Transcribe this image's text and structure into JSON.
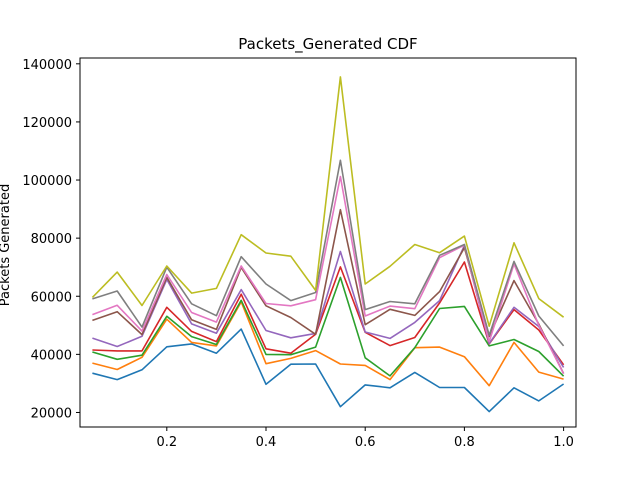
{
  "chart_data": {
    "type": "line",
    "title": "Packets_Generated CDF",
    "xlabel": "",
    "ylabel": "Packets Generated",
    "xlim": [
      0.025,
      1.025
    ],
    "ylim": [
      15000,
      142000
    ],
    "x_ticks": [
      "0.2",
      "0.4",
      "0.6",
      "0.8",
      "1.0"
    ],
    "x_tick_values": [
      0.2,
      0.4,
      0.6,
      0.8,
      1.0
    ],
    "y_ticks": [
      "20000",
      "40000",
      "60000",
      "80000",
      "100000",
      "120000",
      "140000"
    ],
    "y_tick_values": [
      20000,
      40000,
      60000,
      80000,
      100000,
      120000,
      140000
    ],
    "grid": false,
    "legend": "none",
    "x": [
      0.05,
      0.1,
      0.15,
      0.2,
      0.25,
      0.3,
      0.35,
      0.4,
      0.45,
      0.5,
      0.55,
      0.6,
      0.65,
      0.7,
      0.75,
      0.8,
      0.85,
      0.9,
      0.95,
      1.0
    ],
    "series": [
      {
        "color": "#1f77b4",
        "values": [
          33500,
          31300,
          34700,
          42600,
          43600,
          40400,
          48700,
          29700,
          36600,
          36700,
          22000,
          29500,
          28500,
          33800,
          28600,
          28600,
          20300,
          28500,
          24000,
          29800
        ]
      },
      {
        "color": "#ff7f0e",
        "values": [
          37000,
          34800,
          39000,
          52100,
          44100,
          42900,
          58100,
          36800,
          38600,
          41300,
          36700,
          36200,
          31300,
          42300,
          42500,
          39200,
          29200,
          44100,
          33900,
          31500
        ]
      },
      {
        "color": "#2ca02c",
        "values": [
          40800,
          38300,
          39700,
          53100,
          46100,
          43400,
          58600,
          40000,
          39900,
          42500,
          66500,
          38800,
          32600,
          42300,
          55800,
          56500,
          42900,
          45100,
          41000,
          32500
        ]
      },
      {
        "color": "#d62728",
        "values": [
          41500,
          41200,
          41200,
          56200,
          47900,
          44400,
          60700,
          41900,
          40400,
          46900,
          70100,
          47600,
          43000,
          45800,
          57700,
          71800,
          43600,
          55400,
          48400,
          36400
        ]
      },
      {
        "color": "#9467bd",
        "values": [
          45600,
          42700,
          46200,
          65800,
          50500,
          47300,
          62300,
          48200,
          45700,
          47200,
          75400,
          47700,
          45500,
          51000,
          58500,
          77500,
          43700,
          56200,
          49600,
          35500
        ]
      },
      {
        "color": "#8c564b",
        "values": [
          51700,
          54700,
          46800,
          66500,
          51900,
          48600,
          69900,
          56700,
          52700,
          46900,
          89800,
          50200,
          55500,
          53400,
          61600,
          76700,
          46100,
          65400,
          50400,
          33400
        ]
      },
      {
        "color": "#e377c2",
        "values": [
          53700,
          56900,
          48000,
          67500,
          54400,
          51100,
          70400,
          57500,
          56700,
          58800,
          101200,
          53200,
          56600,
          55700,
          73300,
          77600,
          44400,
          71100,
          50000,
          33300
        ]
      },
      {
        "color": "#7f7f7f",
        "values": [
          59100,
          61800,
          49400,
          70000,
          57400,
          53300,
          73600,
          64200,
          58500,
          61300,
          106800,
          55400,
          58200,
          57400,
          74100,
          77800,
          46600,
          72000,
          53200,
          42900
        ]
      },
      {
        "color": "#bcbd22",
        "values": [
          59600,
          68300,
          56800,
          70400,
          61100,
          62700,
          81200,
          74900,
          73800,
          62000,
          135500,
          64200,
          70300,
          77800,
          75000,
          80700,
          49700,
          78400,
          59200,
          52800
        ]
      }
    ]
  }
}
